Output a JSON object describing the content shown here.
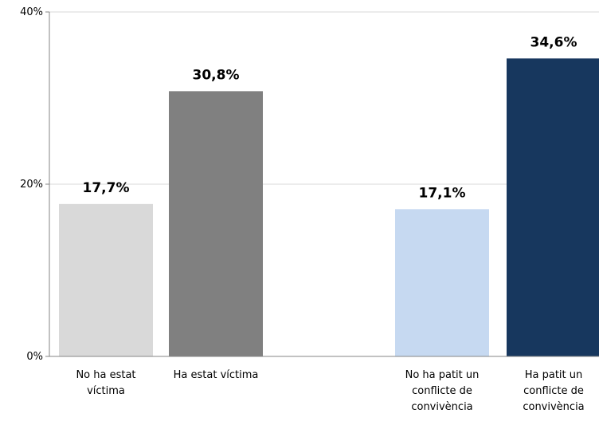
{
  "chart_data": {
    "type": "bar",
    "categories": [
      {
        "lines": [
          "No ha estat",
          "víctima"
        ]
      },
      {
        "lines": [
          "Ha estat víctima"
        ]
      },
      {
        "lines": [
          "No ha patit un",
          "conflicte de",
          "convivència"
        ]
      },
      {
        "lines": [
          "Ha patit un",
          "conflicte de",
          "convivència"
        ]
      }
    ],
    "values": [
      17.7,
      30.8,
      17.1,
      34.6
    ],
    "data_labels": [
      "17,7%",
      "30,8%",
      "17,1%",
      "34,6%"
    ],
    "bar_colors": [
      "#d9d9d9",
      "#808080",
      "#c6d9f1",
      "#17375e"
    ],
    "ylim": [
      0,
      40
    ],
    "y_ticks": [
      {
        "value": 0,
        "label": "0%"
      },
      {
        "value": 20,
        "label": "20%"
      },
      {
        "value": 40,
        "label": "40%"
      }
    ],
    "gridlines": true,
    "legend": "none",
    "title": "",
    "xlabel": "",
    "ylabel": ""
  }
}
